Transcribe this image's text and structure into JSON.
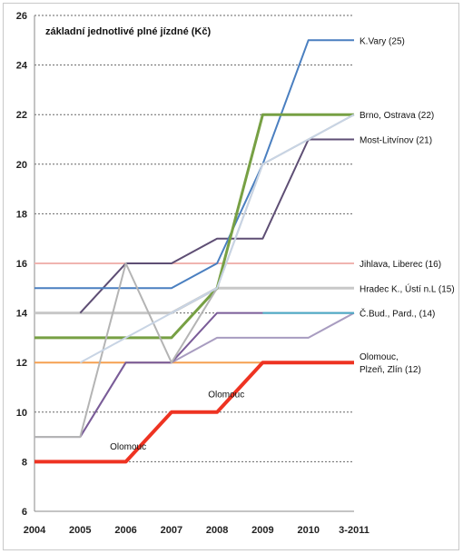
{
  "chart_data": {
    "type": "line",
    "title": "základní jednotlivé plné jízdné (Kč)",
    "xlabel": "",
    "ylabel": "",
    "categories": [
      "2004",
      "2005",
      "2006",
      "2007",
      "2008",
      "2009",
      "2010",
      "3-2011"
    ],
    "ylim": [
      6,
      26
    ],
    "yticks": [
      6,
      8,
      10,
      12,
      14,
      16,
      18,
      20,
      22,
      24,
      26
    ],
    "grid": true,
    "series": [
      {
        "id": "jihlava",
        "color": "#f0b4b0",
        "width": 2,
        "values": [
          16,
          16,
          16,
          16,
          16,
          16,
          16,
          16
        ]
      },
      {
        "id": "olomouc-plzen",
        "color": "#f5a050",
        "width": 2,
        "values": [
          12,
          12,
          12,
          12,
          12,
          12,
          12,
          12
        ]
      },
      {
        "id": "hradec",
        "color": "#c8c8c8",
        "width": 3,
        "values": [
          14,
          14,
          14,
          14,
          15,
          15,
          15,
          15
        ]
      },
      {
        "id": "cbud-pard-a",
        "color": "#a89cc0",
        "width": 2,
        "values": [
          9,
          9,
          12,
          12,
          13,
          13,
          13,
          14
        ]
      },
      {
        "id": "cbud-pard-b",
        "color": "#7a5c98",
        "width": 2,
        "values": [
          null,
          9,
          12,
          12,
          14,
          14,
          14,
          14
        ]
      },
      {
        "id": "cbud-pard-c",
        "color": "#4bacc6",
        "width": 2,
        "values": [
          null,
          null,
          null,
          null,
          null,
          14,
          14,
          14
        ]
      },
      {
        "id": "most",
        "color": "#5e4e74",
        "width": 2,
        "values": [
          null,
          14,
          16,
          16,
          17,
          17,
          21,
          21
        ]
      },
      {
        "id": "kvary",
        "color": "#4a7fc0",
        "width": 2,
        "values": [
          15,
          15,
          15,
          15,
          16,
          20,
          25,
          25
        ]
      },
      {
        "id": "brno",
        "color": "#77a044",
        "width": 3,
        "values": [
          13,
          13,
          13,
          13,
          15,
          22,
          22,
          22
        ]
      },
      {
        "id": "gray-a",
        "color": "#b4b4b4",
        "width": 2,
        "values": [
          9,
          9,
          16,
          12,
          15,
          20,
          21,
          22
        ]
      },
      {
        "id": "gray-b",
        "color": "#c8d4e4",
        "width": 2,
        "values": [
          null,
          12,
          13,
          14,
          15,
          20,
          21,
          22
        ]
      },
      {
        "id": "olomouc",
        "color": "#ee3322",
        "width": 4,
        "values": [
          8,
          8,
          8,
          10,
          10,
          12,
          12,
          12
        ]
      }
    ],
    "labels": [
      {
        "lines": [
          "K.Vary (25)"
        ],
        "y": 25
      },
      {
        "lines": [
          "Brno, Ostrava (22)"
        ],
        "y": 22
      },
      {
        "lines": [
          "Most-Litvínov (21)"
        ],
        "y": 21
      },
      {
        "lines": [
          "Jihlava, Liberec (16)"
        ],
        "y": 16
      },
      {
        "lines": [
          "Hradec K., Ústí n.L (15)"
        ],
        "y": 15
      },
      {
        "lines": [
          "Č.Bud., Pard., (14)"
        ],
        "y": 14
      },
      {
        "lines": [
          "Olomouc,",
          "Plzeň, Zlín (12)"
        ],
        "y": 12
      }
    ],
    "annotations": [
      {
        "text": "Olomouc",
        "x": 2.05,
        "y": 8.5
      },
      {
        "text": "Olomouc",
        "x": 4.2,
        "y": 10.6
      }
    ]
  }
}
